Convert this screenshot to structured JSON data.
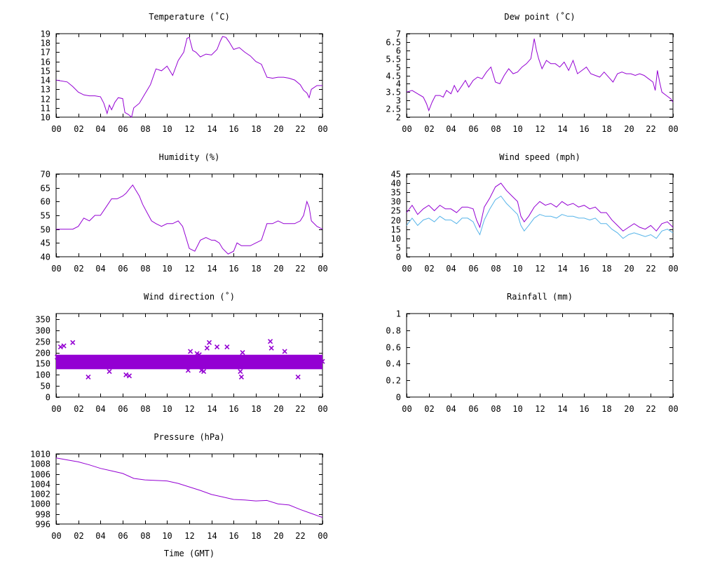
{
  "colors": {
    "primary": "#9400d3",
    "secondary": "#56b4e9",
    "axis": "#000000",
    "background": "#ffffff"
  },
  "x_tick_labels": [
    "00",
    "02",
    "04",
    "06",
    "08",
    "10",
    "12",
    "14",
    "16",
    "18",
    "20",
    "22",
    "00"
  ],
  "x_axis_label": "Time (GMT)",
  "chart_data": [
    {
      "id": "temperature",
      "type": "line",
      "title": "Temperature (˚C)",
      "xlabel": "",
      "ylabel": "",
      "xlim": [
        0,
        24
      ],
      "ylim": [
        10,
        19
      ],
      "yticks": [
        10,
        11,
        12,
        13,
        14,
        15,
        16,
        17,
        18,
        19
      ],
      "ytick_labels": [
        "10",
        "11",
        "12",
        "13",
        "14",
        "15",
        "16",
        "17",
        "18",
        "19"
      ],
      "series": [
        {
          "color": "#9400d3",
          "x": [
            0,
            1,
            1.5,
            2,
            2.5,
            3,
            3.5,
            4,
            4.3,
            4.6,
            4.8,
            5,
            5.3,
            5.6,
            6,
            6.2,
            6.5,
            6.8,
            7,
            7.5,
            8,
            8.5,
            9,
            9.5,
            10,
            10.5,
            11,
            11.5,
            11.8,
            12,
            12.3,
            12.6,
            13,
            13.5,
            14,
            14.5,
            14.8,
            15,
            15.3,
            15.6,
            16,
            16.5,
            17,
            17.5,
            18,
            18.5,
            19,
            19.5,
            20,
            20.5,
            21,
            21.5,
            22,
            22.3,
            22.6,
            22.8,
            23,
            23.5,
            24
          ],
          "y": [
            14,
            13.8,
            13.3,
            12.7,
            12.4,
            12.3,
            12.3,
            12.2,
            11.5,
            10.4,
            11.3,
            10.8,
            11.6,
            12.1,
            12,
            10.5,
            10.3,
            10,
            11,
            11.5,
            12.5,
            13.5,
            15.2,
            15,
            15.5,
            14.5,
            16.1,
            17,
            18.5,
            18.6,
            17.2,
            17,
            16.5,
            16.8,
            16.7,
            17.3,
            18.2,
            18.7,
            18.6,
            18.1,
            17.3,
            17.5,
            17,
            16.6,
            16,
            15.7,
            14.3,
            14.2,
            14.3,
            14.3,
            14.2,
            14,
            13.5,
            12.9,
            12.6,
            12.1,
            13,
            13.4,
            13.4
          ]
        }
      ]
    },
    {
      "id": "dew_point",
      "type": "line",
      "title": "Dew point (˚C)",
      "xlabel": "",
      "ylabel": "",
      "xlim": [
        0,
        24
      ],
      "ylim": [
        2,
        7
      ],
      "yticks": [
        2,
        2.5,
        3,
        3.5,
        4,
        4.5,
        5,
        5.5,
        6,
        6.5,
        7
      ],
      "ytick_labels": [
        "2",
        "2.5",
        "3",
        "3.5",
        "4",
        "4.5",
        "5",
        "5.5",
        "6",
        "6.5",
        "7"
      ],
      "series": [
        {
          "color": "#9400d3",
          "x": [
            0,
            0.5,
            1,
            1.5,
            1.8,
            2,
            2.3,
            2.6,
            3,
            3.3,
            3.6,
            4,
            4.3,
            4.6,
            5,
            5.3,
            5.6,
            6,
            6.4,
            6.8,
            7.2,
            7.6,
            8,
            8.4,
            8.8,
            9.2,
            9.6,
            10,
            10.4,
            10.8,
            11.2,
            11.5,
            11.7,
            11.9,
            12.2,
            12.6,
            13,
            13.4,
            13.8,
            14.2,
            14.6,
            15,
            15.4,
            15.8,
            16.2,
            16.6,
            17,
            17.4,
            17.8,
            18.2,
            18.6,
            19,
            19.4,
            19.8,
            20.2,
            20.6,
            21,
            21.4,
            21.8,
            22.2,
            22.4,
            22.6,
            22.8,
            23,
            23.4,
            23.8,
            24
          ],
          "y": [
            3.5,
            3.6,
            3.4,
            3.2,
            2.8,
            2.4,
            2.9,
            3.3,
            3.3,
            3.2,
            3.6,
            3.4,
            3.9,
            3.5,
            3.9,
            4.2,
            3.8,
            4.2,
            4.4,
            4.3,
            4.7,
            5,
            4.1,
            4,
            4.5,
            4.9,
            4.6,
            4.7,
            5,
            5.2,
            5.5,
            6.7,
            6,
            5.5,
            4.9,
            5.4,
            5.2,
            5.2,
            5,
            5.3,
            4.8,
            5.4,
            4.6,
            4.8,
            5,
            4.6,
            4.5,
            4.4,
            4.7,
            4.4,
            4.1,
            4.6,
            4.7,
            4.6,
            4.6,
            4.5,
            4.6,
            4.5,
            4.3,
            4.1,
            3.6,
            4.8,
            4.1,
            3.5,
            3.3,
            3.1,
            2.9
          ]
        }
      ]
    },
    {
      "id": "humidity",
      "type": "line",
      "title": "Humidity (%)",
      "xlabel": "",
      "ylabel": "",
      "xlim": [
        0,
        24
      ],
      "ylim": [
        40,
        70
      ],
      "yticks": [
        40,
        45,
        50,
        55,
        60,
        65,
        70
      ],
      "ytick_labels": [
        "40",
        "45",
        "50",
        "55",
        "60",
        "65",
        "70"
      ],
      "series": [
        {
          "color": "#9400d3",
          "x": [
            0,
            1,
            1.5,
            2,
            2.5,
            3,
            3.5,
            4,
            4.5,
            5,
            5.5,
            6,
            6.3,
            6.6,
            6.9,
            7.2,
            7.5,
            7.8,
            8.2,
            8.6,
            9,
            9.5,
            10,
            10.5,
            11,
            11.4,
            11.7,
            12,
            12.5,
            13,
            13.5,
            14,
            14.3,
            14.7,
            15,
            15.5,
            16,
            16.3,
            16.7,
            17,
            17.5,
            18,
            18.5,
            19,
            19.5,
            20,
            20.5,
            21,
            21.5,
            22,
            22.3,
            22.6,
            22.8,
            23,
            23.5,
            24
          ],
          "y": [
            50,
            50,
            50,
            51,
            54,
            53,
            55,
            55,
            58,
            61,
            61,
            62,
            63,
            64.5,
            66,
            64,
            62,
            59,
            56,
            53,
            52,
            51,
            52,
            52,
            53,
            51,
            47,
            43,
            42,
            46,
            47,
            46,
            46,
            45,
            43,
            41,
            42,
            45,
            44,
            44,
            44,
            45,
            46,
            52,
            52,
            53,
            52,
            52,
            52,
            53,
            55,
            60,
            58,
            53,
            51,
            50
          ]
        }
      ]
    },
    {
      "id": "wind_speed",
      "type": "line",
      "title": "Wind speed (mph)",
      "xlabel": "",
      "ylabel": "",
      "xlim": [
        0,
        24
      ],
      "ylim": [
        0,
        45
      ],
      "yticks": [
        0,
        5,
        10,
        15,
        20,
        25,
        30,
        35,
        40,
        45
      ],
      "ytick_labels": [
        "0",
        "5",
        "10",
        "15",
        "20",
        "25",
        "30",
        "35",
        "40",
        "45"
      ],
      "series": [
        {
          "color": "#9400d3",
          "x": [
            0,
            0.5,
            1,
            1.5,
            2,
            2.5,
            3,
            3.5,
            4,
            4.5,
            5,
            5.5,
            6,
            6.3,
            6.6,
            7,
            7.5,
            8,
            8.5,
            9,
            9.5,
            10,
            10.3,
            10.6,
            11,
            11.5,
            12,
            12.5,
            13,
            13.5,
            14,
            14.5,
            15,
            15.5,
            16,
            16.5,
            17,
            17.5,
            18,
            18.5,
            19,
            19.5,
            20,
            20.5,
            21,
            21.5,
            22,
            22.5,
            23,
            23.5,
            24
          ],
          "y": [
            24,
            28,
            23,
            26,
            28,
            25,
            28,
            26,
            26,
            24,
            27,
            27,
            26,
            20,
            16,
            27,
            32,
            38,
            40,
            36,
            33,
            30,
            22,
            19,
            22,
            27,
            30,
            28,
            29,
            27,
            30,
            28,
            29,
            27,
            28,
            26,
            27,
            24,
            24,
            20,
            17,
            14,
            16,
            18,
            16,
            15,
            17,
            14,
            18,
            19,
            16
          ]
        },
        {
          "color": "#56b4e9",
          "x": [
            0,
            0.5,
            1,
            1.5,
            2,
            2.5,
            3,
            3.5,
            4,
            4.5,
            5,
            5.5,
            6,
            6.3,
            6.6,
            7,
            7.5,
            8,
            8.5,
            9,
            9.5,
            10,
            10.3,
            10.6,
            11,
            11.5,
            12,
            12.5,
            13,
            13.5,
            14,
            14.5,
            15,
            15.5,
            16,
            16.5,
            17,
            17.5,
            18,
            18.5,
            19,
            19.5,
            20,
            20.5,
            21,
            21.5,
            22,
            22.5,
            23,
            23.5,
            24
          ],
          "y": [
            17,
            21,
            17,
            20,
            21,
            19,
            22,
            20,
            20,
            18,
            21,
            21,
            19,
            15,
            12,
            20,
            26,
            31,
            33,
            29,
            26,
            23,
            17,
            14,
            17,
            21,
            23,
            22,
            22,
            21,
            23,
            22,
            22,
            21,
            21,
            20,
            21,
            18,
            18,
            15,
            13,
            10,
            12,
            13,
            12,
            11,
            12,
            10,
            14,
            15,
            13
          ]
        }
      ]
    },
    {
      "id": "wind_direction",
      "type": "scatter",
      "title": "Wind direction (˚)",
      "xlabel": "",
      "ylabel": "",
      "xlim": [
        0,
        24
      ],
      "ylim": [
        0,
        375
      ],
      "yticks": [
        0,
        50,
        100,
        150,
        200,
        250,
        300,
        350
      ],
      "ytick_labels": [
        "0",
        "50",
        "100",
        "150",
        "200",
        "250",
        "300",
        "350"
      ],
      "band": {
        "y_low": 125,
        "y_high": 190
      },
      "series": [
        {
          "color": "#9400d3",
          "x": [
            0.1,
            0.3,
            0.4,
            0.7,
            1.5,
            2.9,
            4.8,
            6.5,
            6.6,
            6.3,
            7.0,
            11.6,
            11.9,
            12.1,
            12.7,
            12.9,
            13.1,
            13.3,
            13.6,
            13.8,
            14.5,
            15.4,
            16.6,
            16.7,
            16.8,
            19.3,
            19.4,
            20.6,
            21.8,
            24
          ],
          "y": [
            180,
            140,
            225,
            230,
            245,
            90,
            115,
            175,
            95,
            100,
            150,
            175,
            120,
            205,
            195,
            190,
            120,
            115,
            220,
            245,
            225,
            225,
            115,
            90,
            200,
            250,
            220,
            205,
            90,
            160
          ]
        }
      ]
    },
    {
      "id": "rainfall",
      "type": "line",
      "title": "Rainfall (mm)",
      "xlabel": "",
      "ylabel": "",
      "xlim": [
        0,
        24
      ],
      "ylim": [
        0,
        1
      ],
      "yticks": [
        0,
        0.2,
        0.4,
        0.6,
        0.8,
        1
      ],
      "ytick_labels": [
        "0",
        "0.2",
        "0.4",
        "0.6",
        "0.8",
        "1"
      ],
      "series": []
    },
    {
      "id": "pressure",
      "type": "line",
      "title": "Pressure (hPa)",
      "xlabel": "Time (GMT)",
      "ylabel": "",
      "xlim": [
        0,
        24
      ],
      "ylim": [
        996,
        1010
      ],
      "yticks": [
        996,
        998,
        1000,
        1002,
        1004,
        1006,
        1008,
        1010
      ],
      "ytick_labels": [
        "996",
        "998",
        "1000",
        "1002",
        "1004",
        "1006",
        "1008",
        "1010"
      ],
      "series": [
        {
          "color": "#9400d3",
          "x": [
            0,
            1,
            2,
            3,
            4,
            5,
            6,
            7,
            8,
            9,
            10,
            11,
            12,
            13,
            14,
            15,
            16,
            17,
            18,
            19,
            20,
            21,
            22,
            23,
            24
          ],
          "y": [
            1009.2,
            1008.8,
            1008.4,
            1007.8,
            1007.1,
            1006.6,
            1006.1,
            1005.1,
            1004.8,
            1004.7,
            1004.6,
            1004.1,
            1003.4,
            1002.7,
            1001.9,
            1001.4,
            1000.9,
            1000.8,
            1000.6,
            1000.7,
            1000.0,
            999.8,
            998.9,
            998.1,
            997.3
          ]
        }
      ]
    }
  ]
}
